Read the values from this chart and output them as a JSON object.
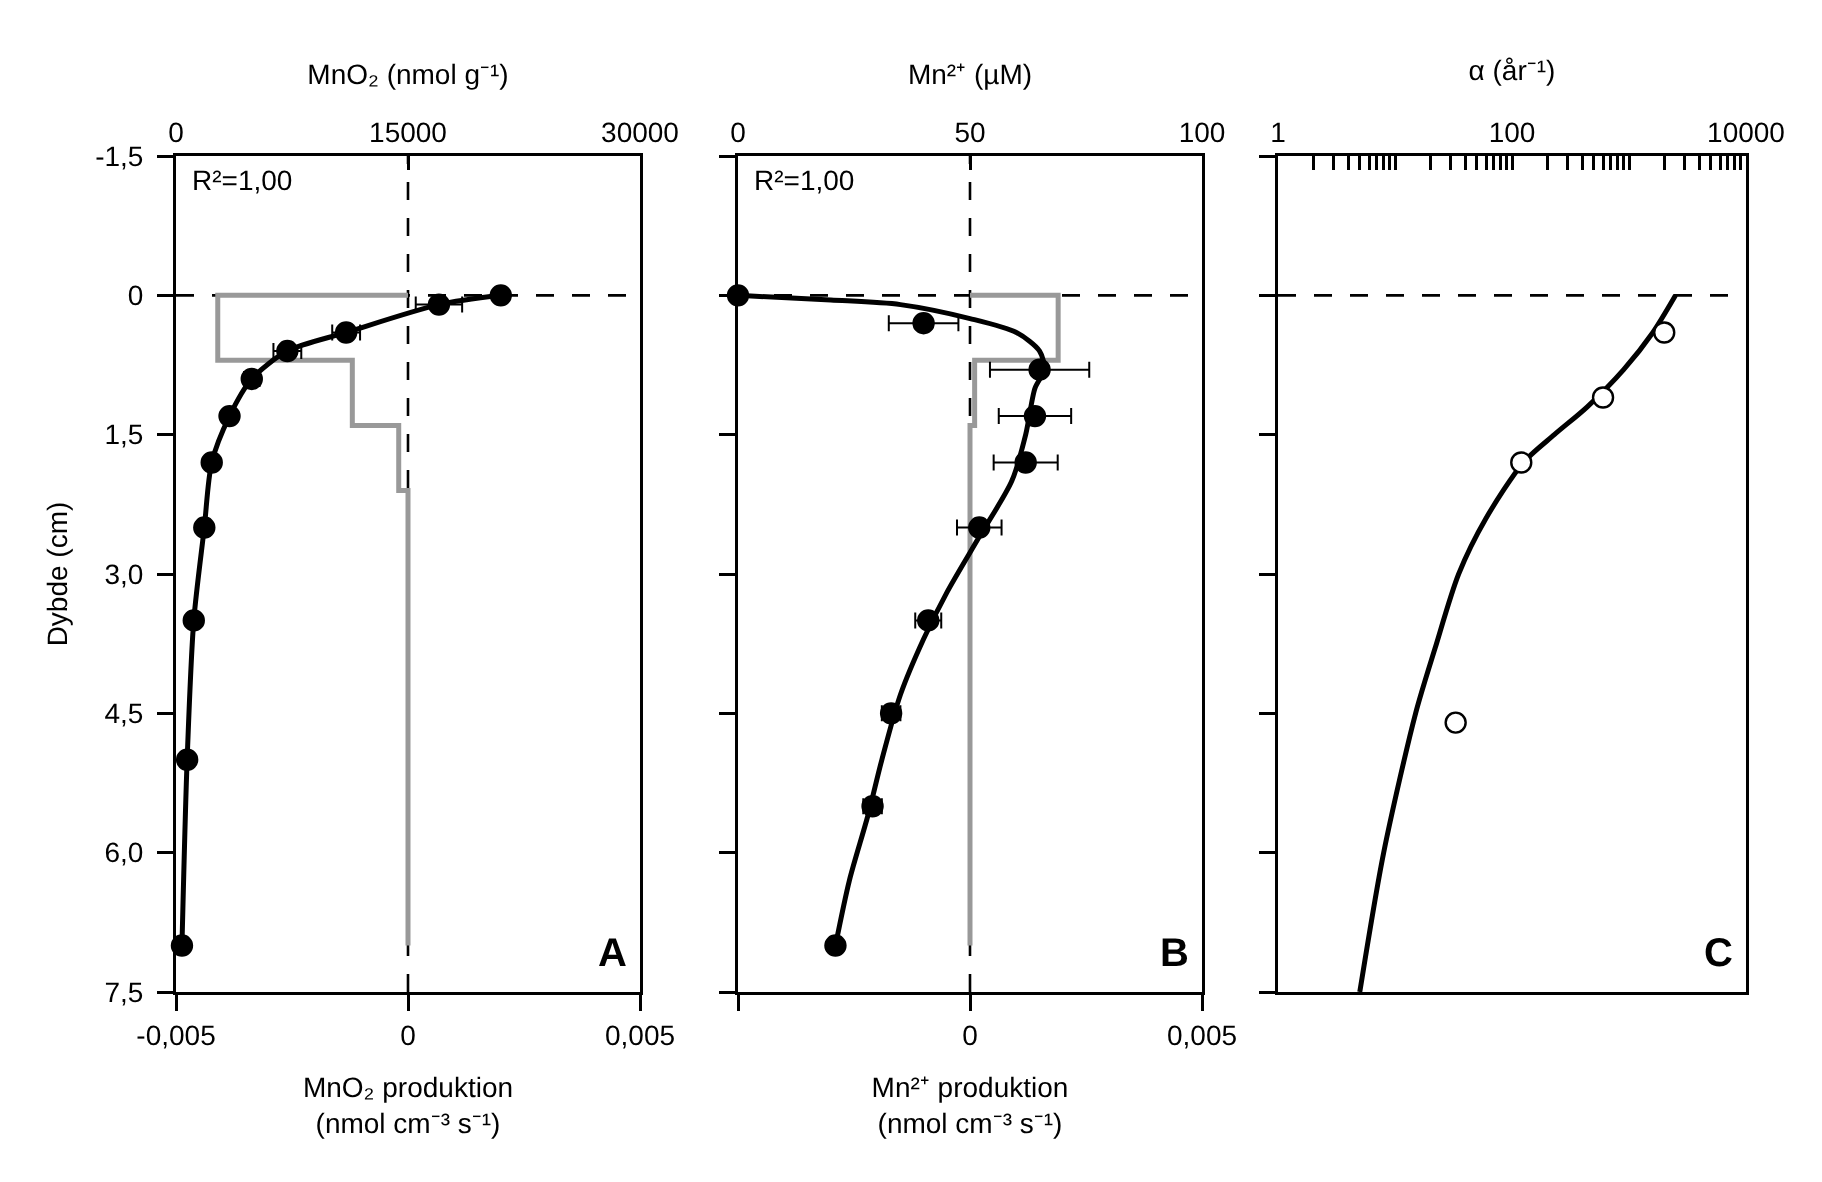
{
  "chart_data": [
    {
      "type": "scatter",
      "x2label": "MnO₂ (nmol g⁻¹)",
      "xlabel": "MnO₂ produktion\n(nmol cm⁻³ s⁻¹)",
      "ylabel": "Dybde (cm)",
      "annotations": [
        "R²=1,00",
        "A"
      ],
      "xlim": [
        -0.005,
        0.005
      ],
      "xticks": [
        {
          "value": -0.005,
          "label": "-0,005"
        },
        0,
        {
          "value": 0.005,
          "label": "0,005"
        }
      ],
      "x2lim": [
        0,
        30000
      ],
      "x2ticks": [
        0,
        15000,
        30000
      ],
      "ylim": [
        7.5,
        -1.5
      ],
      "yticks": [
        {
          "value": -1.5,
          "label": "-1,5"
        },
        0,
        {
          "value": 1.5,
          "label": "1,5"
        },
        {
          "value": 3,
          "label": "3,0"
        },
        {
          "value": 4.5,
          "label": "4,5"
        },
        {
          "value": 6,
          "label": "6,0"
        },
        {
          "value": 7.5,
          "label": "7,5"
        }
      ],
      "grid": false,
      "ref_lines": [
        {
          "axis": "y",
          "value": 0,
          "line_style": "dashed",
          "color": "#000000"
        },
        {
          "axis": "x",
          "value": 0,
          "line_style": "dashed",
          "color": "#000000"
        }
      ],
      "series": [
        {
          "type": "step",
          "color": "#999999",
          "x": [
            0,
            -0.0041,
            -0.0041,
            -0.0012,
            -0.0012,
            -0.0002,
            -0.0002,
            0,
            0
          ],
          "values": [
            0,
            0,
            0.7,
            0.7,
            1.4,
            1.4,
            2.1,
            2.1,
            7.0
          ]
        },
        {
          "type": "line",
          "axis": "x2",
          "color": "#000000",
          "x": [
            21000,
            17000,
            11000,
            7200,
            4900,
            3460,
            2310,
            1830,
            1150,
            720,
            385
          ],
          "values": [
            0,
            0.1,
            0.4,
            0.6,
            0.9,
            1.3,
            1.8,
            2.5,
            3.5,
            5.0,
            7.0
          ]
        },
        {
          "axis": "x2",
          "marker": "circle",
          "color": "#000000",
          "x": [
            21000,
            17000,
            11000,
            7200,
            4900,
            3460,
            2310,
            1830,
            1150,
            720,
            385
          ],
          "values": [
            0,
            0.1,
            0.4,
            0.6,
            0.9,
            1.3,
            1.8,
            2.5,
            3.5,
            5.0,
            7.0
          ],
          "xerrors": [
            null,
            1500,
            900,
            900,
            500,
            null,
            null,
            null,
            null,
            null,
            null
          ]
        }
      ]
    },
    {
      "type": "scatter",
      "x2label": "Mn²⁺ (µM)",
      "xlabel": "Mn²⁺ produktion\n(nmol cm⁻³ s⁻¹)",
      "annotations": [
        "R²=1,00",
        "B"
      ],
      "xlim": [
        -0.005,
        0.005
      ],
      "xticks": [
        {
          "value": -0.005,
          "label": null
        },
        0,
        {
          "value": 0.005,
          "label": "0,005"
        }
      ],
      "x2lim": [
        0,
        100
      ],
      "x2ticks": [
        0,
        50,
        100
      ],
      "ylim": [
        7.5,
        -1.5
      ],
      "yticks": [
        {
          "value": -1.5,
          "label": null
        },
        {
          "value": 0,
          "label": null
        },
        {
          "value": 1.5,
          "label": null
        },
        {
          "value": 3,
          "label": null
        },
        {
          "value": 4.5,
          "label": null
        },
        {
          "value": 6,
          "label": null
        },
        {
          "value": 7.5,
          "label": null
        }
      ],
      "tick_labels": "x",
      "grid": false,
      "ref_lines": [
        {
          "axis": "y",
          "value": 0,
          "line_style": "dashed",
          "color": "#000000"
        },
        {
          "axis": "x",
          "value": 0,
          "line_style": "dashed",
          "color": "#000000"
        }
      ],
      "series": [
        {
          "type": "step",
          "color": "#999999",
          "x": [
            0,
            0.0019,
            0.0019,
            0.0001,
            0.0001,
            0,
            0
          ],
          "values": [
            0,
            0,
            0.7,
            0.7,
            1.4,
            1.4,
            7.0
          ]
        },
        {
          "type": "line",
          "axis": "x2",
          "color": "#000000",
          "x": [
            0,
            20,
            35,
            50,
            60,
            65,
            66,
            64,
            62,
            59,
            52,
            45,
            40,
            35,
            31,
            28,
            24,
            21
          ],
          "values": [
            0,
            0.05,
            0.1,
            0.25,
            0.4,
            0.6,
            0.8,
            1.0,
            1.5,
            2.0,
            2.6,
            3.2,
            3.7,
            4.3,
            5.0,
            5.6,
            6.3,
            7.0
          ]
        },
        {
          "axis": "x2",
          "marker": "circle",
          "color": "#000000",
          "x": [
            0,
            40,
            65,
            64,
            62,
            52,
            41,
            33,
            29,
            21
          ],
          "values": [
            0,
            0.3,
            0.8,
            1.3,
            1.8,
            2.5,
            3.5,
            4.5,
            5.5,
            7.0
          ],
          "xerrors": [
            null,
            7.5,
            10.7,
            7.8,
            6.9,
            4.8,
            2.8,
            2,
            2,
            null
          ]
        }
      ]
    },
    {
      "type": "scatter",
      "xlabel": "α (år⁻¹)",
      "annotations": [
        "C"
      ],
      "log": "x",
      "xlim": [
        1,
        10000
      ],
      "xticks": [
        1,
        {
          "value": 2,
          "label": null
        },
        {
          "value": 3,
          "label": null
        },
        {
          "value": 4,
          "label": null
        },
        {
          "value": 5,
          "label": null
        },
        {
          "value": 6,
          "label": null
        },
        {
          "value": 7,
          "label": null
        },
        {
          "value": 8,
          "label": null
        },
        {
          "value": 9,
          "label": null
        },
        {
          "value": 10,
          "label": null
        },
        {
          "value": 20,
          "label": null
        },
        {
          "value": 30,
          "label": null
        },
        {
          "value": 40,
          "label": null
        },
        {
          "value": 50,
          "label": null
        },
        {
          "value": 60,
          "label": null
        },
        {
          "value": 70,
          "label": null
        },
        {
          "value": 80,
          "label": null
        },
        {
          "value": 90,
          "label": null
        },
        100,
        {
          "value": 200,
          "label": null
        },
        {
          "value": 300,
          "label": null
        },
        {
          "value": 400,
          "label": null
        },
        {
          "value": 500,
          "label": null
        },
        {
          "value": 600,
          "label": null
        },
        {
          "value": 700,
          "label": null
        },
        {
          "value": 800,
          "label": null
        },
        {
          "value": 900,
          "label": null
        },
        {
          "value": 1000,
          "label": null
        },
        {
          "value": 2000,
          "label": null
        },
        {
          "value": 3000,
          "label": null
        },
        {
          "value": 4000,
          "label": null
        },
        {
          "value": 5000,
          "label": null
        },
        {
          "value": 6000,
          "label": null
        },
        {
          "value": 7000,
          "label": null
        },
        {
          "value": 8000,
          "label": null
        },
        {
          "value": 9000,
          "label": null
        },
        10000
      ],
      "ylim": [
        7.5,
        -1.5
      ],
      "yticks": [
        {
          "value": -1.5,
          "label": null
        },
        {
          "value": 0,
          "label": null
        },
        {
          "value": 1.5,
          "label": null
        },
        {
          "value": 3,
          "label": null
        },
        {
          "value": 4.5,
          "label": null
        },
        {
          "value": 6,
          "label": null
        },
        {
          "value": 7.5,
          "label": null
        }
      ],
      "tick_labels": "x",
      "grid": false,
      "ref_lines": [
        {
          "axis": "y",
          "value": 0,
          "line_style": "dashed",
          "color": "#000000"
        }
      ],
      "series": [
        {
          "type": "line",
          "color": "#000000",
          "x": [
            2500,
            1600,
            900,
            440,
            230,
            125,
            60,
            35,
            22,
            15,
            8,
            5
          ],
          "values": [
            0,
            0.4,
            0.8,
            1.2,
            1.5,
            1.8,
            2.4,
            3.0,
            3.8,
            4.5,
            6.0,
            7.5
          ]
        },
        {
          "marker": "circle",
          "color": "#ffffff",
          "x": [
            2000,
            600,
            120,
            33
          ],
          "values": [
            0.4,
            1.1,
            1.8,
            4.6
          ]
        }
      ]
    }
  ]
}
